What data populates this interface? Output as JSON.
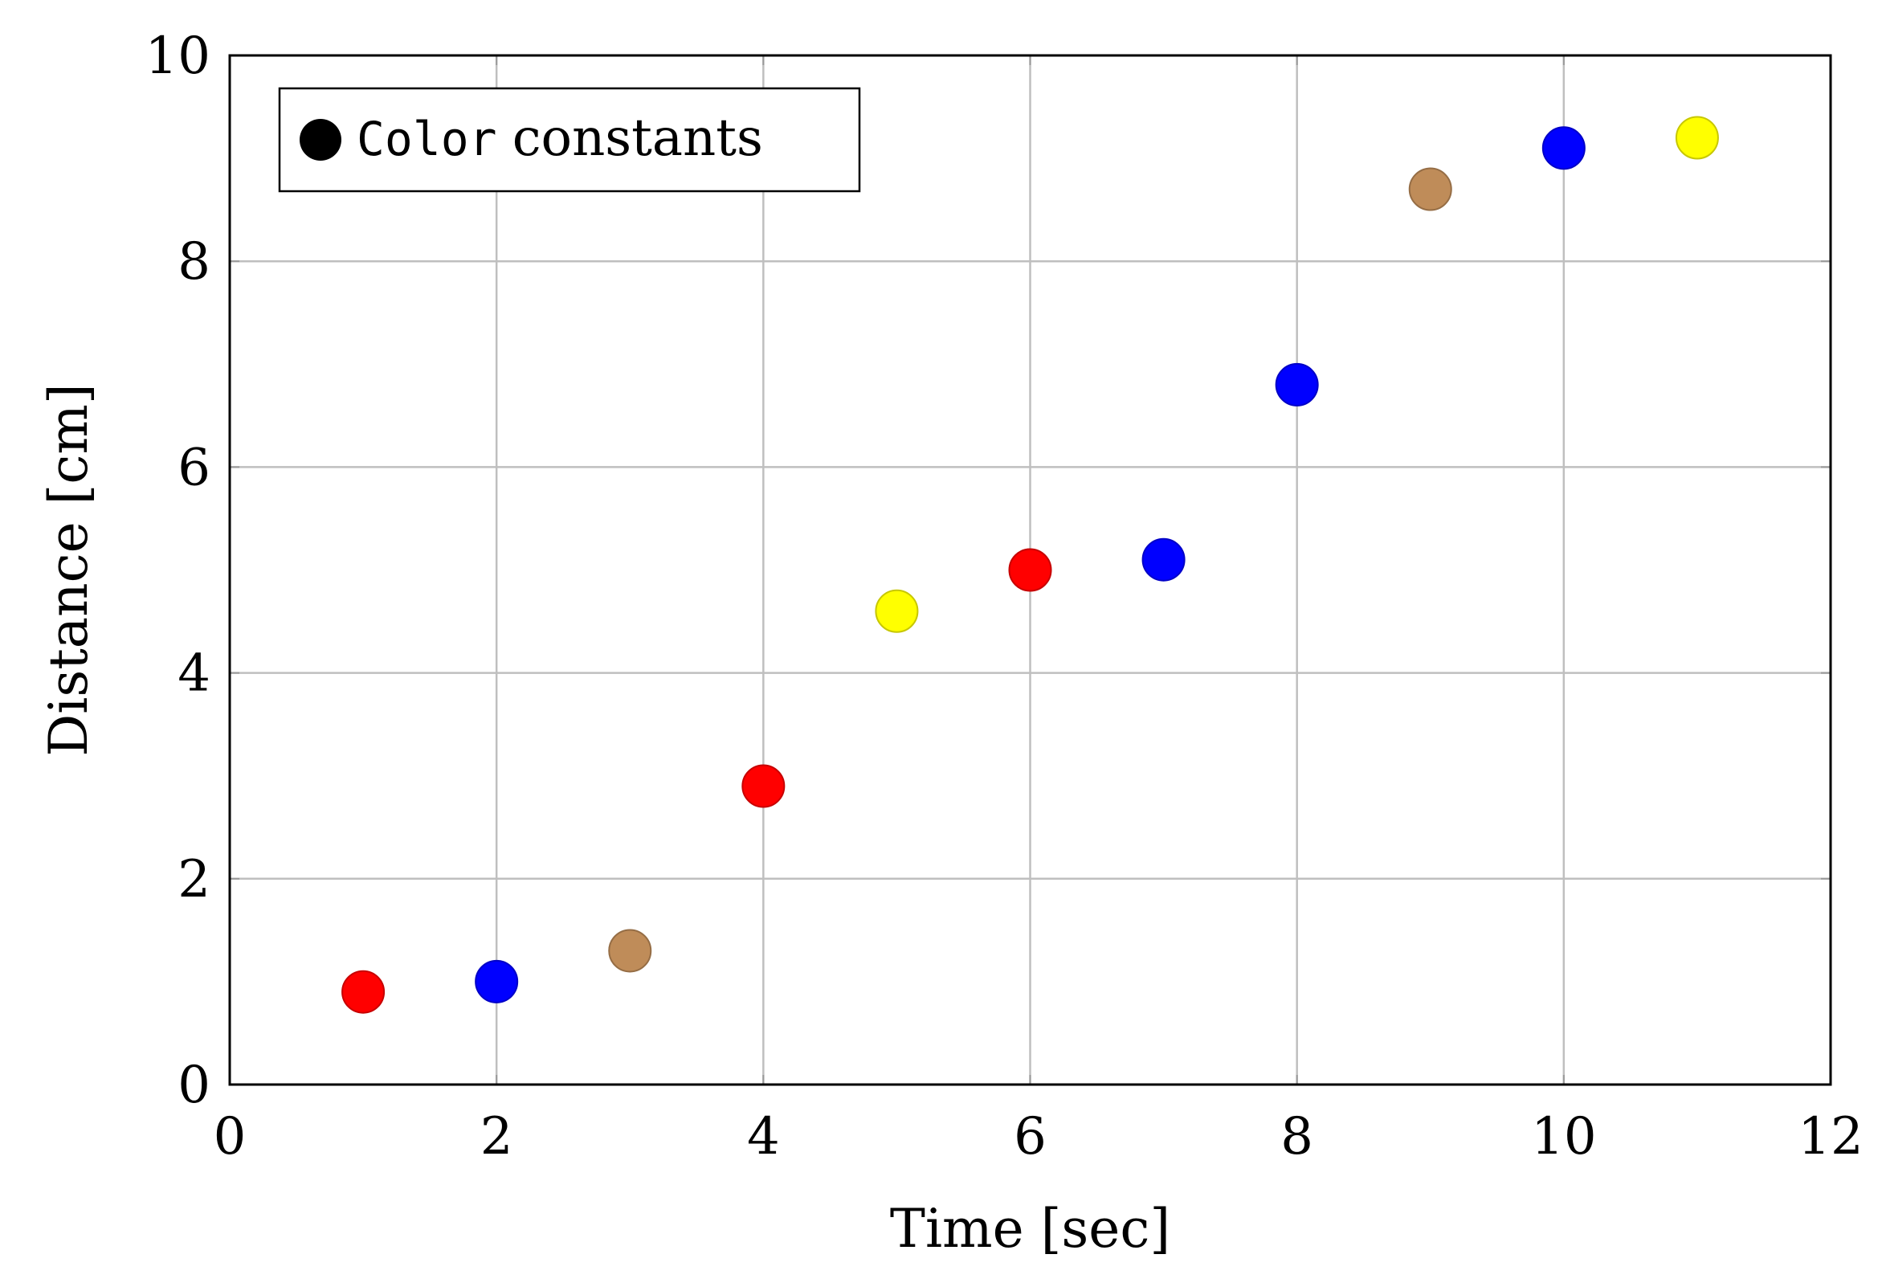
{
  "chart_data": {
    "type": "scatter",
    "title": "",
    "xlabel": "Time [sec]",
    "ylabel": "Distance [cm]",
    "xlim": [
      0,
      12
    ],
    "ylim": [
      0,
      10
    ],
    "xticks": [
      0,
      2,
      4,
      6,
      8,
      10,
      12
    ],
    "yticks": [
      0,
      2,
      4,
      6,
      8,
      10
    ],
    "grid": true,
    "legend": {
      "placement": "top-left",
      "entries": [
        {
          "code": "Color",
          "text": "constants",
          "marker_color": "#000000"
        }
      ]
    },
    "colors": {
      "red": "#ff0000",
      "blue": "#0000ff",
      "brown": "#bf8c59",
      "yellow": "#ffff00"
    },
    "points": [
      {
        "x": 1,
        "y": 0.9,
        "color": "red"
      },
      {
        "x": 2,
        "y": 1.0,
        "color": "blue"
      },
      {
        "x": 3,
        "y": 1.3,
        "color": "brown"
      },
      {
        "x": 4,
        "y": 2.9,
        "color": "red"
      },
      {
        "x": 5,
        "y": 4.6,
        "color": "yellow"
      },
      {
        "x": 6,
        "y": 5.0,
        "color": "red"
      },
      {
        "x": 7,
        "y": 5.1,
        "color": "blue"
      },
      {
        "x": 8,
        "y": 6.8,
        "color": "blue"
      },
      {
        "x": 9,
        "y": 8.7,
        "color": "brown"
      },
      {
        "x": 10,
        "y": 9.1,
        "color": "blue"
      },
      {
        "x": 11,
        "y": 9.2,
        "color": "yellow"
      }
    ]
  }
}
